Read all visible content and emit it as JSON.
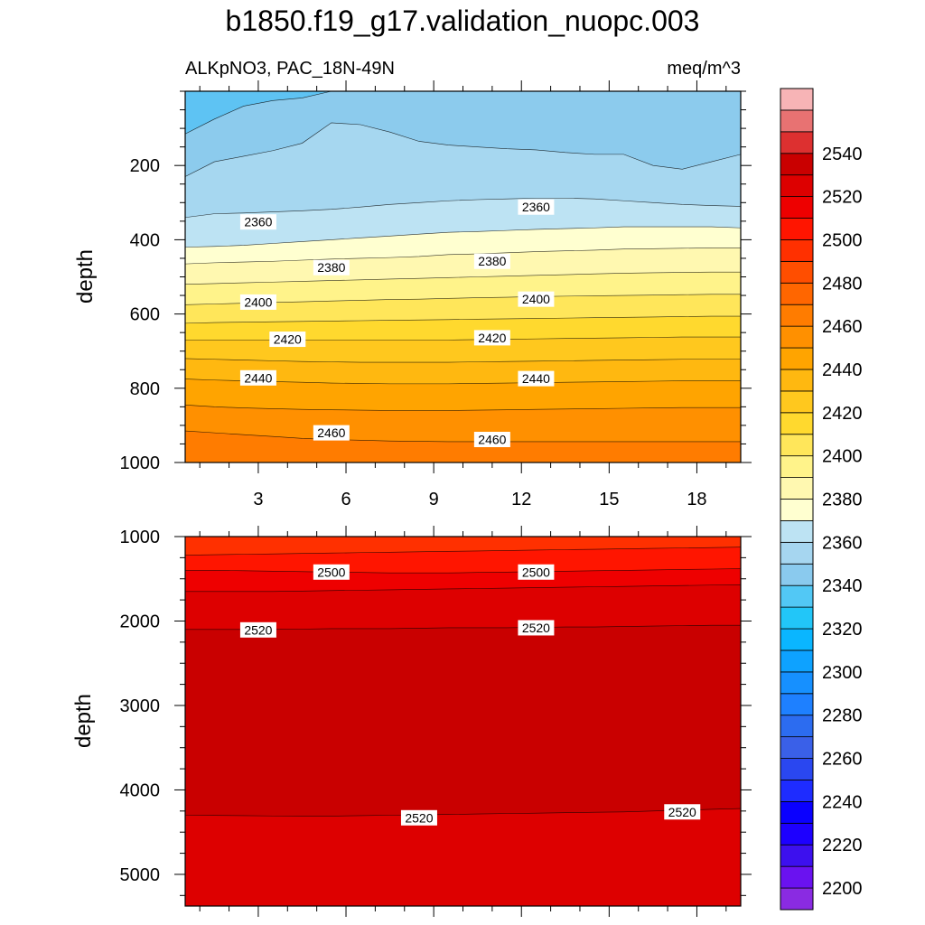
{
  "chart_data": {
    "type": "heatmap",
    "title": "b1850.f19_g17.validation_nuopc.003",
    "subtitle_left": "ALKpNO3, PAC_18N-49N",
    "subtitle_right": "meq/m^3",
    "xticks": [
      "3",
      "6",
      "9",
      "12",
      "15",
      "18"
    ],
    "x_range": [
      0.5,
      19.5
    ],
    "colorbar": {
      "levels": [
        2190,
        2200,
        2210,
        2220,
        2230,
        2240,
        2250,
        2260,
        2270,
        2280,
        2290,
        2300,
        2310,
        2320,
        2330,
        2340,
        2350,
        2360,
        2370,
        2380,
        2390,
        2400,
        2410,
        2420,
        2430,
        2440,
        2450,
        2460,
        2470,
        2480,
        2490,
        2500,
        2510,
        2520,
        2530,
        2540,
        2550,
        2560
      ],
      "colors": [
        "#8a2be2",
        "#6a12f0",
        "#3d10ee",
        "#1d00ff",
        "#0a00ff",
        "#1e2cff",
        "#2a47f0",
        "#3a60e8",
        "#2c6cf0",
        "#1e80ff",
        "#1690ff",
        "#0ea2ff",
        "#0ab6ff",
        "#22c6f8",
        "#52c8f5",
        "#8acaee",
        "#a6d6f0",
        "#bde3f3",
        "#ffffd0",
        "#fff8b0",
        "#fff38a",
        "#ffe65a",
        "#ffd92e",
        "#ffc81e",
        "#ffb810",
        "#ffa400",
        "#ff9000",
        "#ff7c00",
        "#ff6600",
        "#ff4e00",
        "#ff3000",
        "#ff1500",
        "#ee0000",
        "#dd0000",
        "#c90000",
        "#dd3030",
        "#e87272",
        "#f7b4b6"
      ],
      "tick_labels": [
        "2200",
        "2220",
        "2240",
        "2260",
        "2280",
        "2300",
        "2320",
        "2340",
        "2360",
        "2380",
        "2400",
        "2420",
        "2440",
        "2460",
        "2480",
        "2500",
        "2520",
        "2540"
      ]
    },
    "panels": [
      {
        "name": "upper",
        "ylabel": "depth",
        "y_range": [
          0,
          1000
        ],
        "yticks": [
          "200",
          "400",
          "600",
          "800",
          "1000"
        ],
        "bands": [
          {
            "color": "#5ec3f3",
            "top": [
              0,
              0,
              0,
              0,
              0,
              0,
              0,
              0,
              0,
              0,
              0,
              0,
              0,
              0,
              0,
              0,
              0,
              0,
              0,
              0
            ]
          },
          {
            "color": "#8ccbed",
            "top": [
              115,
              75,
              40,
              25,
              18,
              0,
              0,
              0,
              0,
              0,
              0,
              0,
              0,
              0,
              0,
              0,
              0,
              0,
              0,
              0
            ]
          },
          {
            "color": "#a6d7f0",
            "top": [
              230,
              190,
              175,
              160,
              140,
              85,
              90,
              110,
              135,
              145,
              150,
              155,
              158,
              165,
              170,
              170,
              200,
              210,
              190,
              170
            ]
          },
          {
            "color": "#bde3f3",
            "top": [
              340,
              330,
              328,
              325,
              322,
              318,
              312,
              305,
              300,
              295,
              292,
              290,
              288,
              288,
              290,
              295,
              300,
              305,
              308,
              310
            ]
          },
          {
            "color": "#ffffd0",
            "top": [
              420,
              418,
              415,
              410,
              405,
              400,
              395,
              390,
              385,
              380,
              378,
              375,
              372,
              370,
              368,
              365,
              365,
              365,
              365,
              368
            ]
          },
          {
            "color": "#fff8b0",
            "top": [
              465,
              462,
              460,
              458,
              455,
              452,
              450,
              448,
              445,
              440,
              438,
              435,
              432,
              430,
              428,
              425,
              424,
              423,
              422,
              422
            ]
          },
          {
            "color": "#fff38a",
            "top": [
              520,
              518,
              516,
              514,
              512,
              510,
              508,
              506,
              504,
              502,
              500,
              498,
              496,
              494,
              492,
              490,
              489,
              488,
              487,
              487
            ]
          },
          {
            "color": "#ffe65a",
            "top": [
              575,
              573,
              571,
              569,
              567,
              565,
              563,
              561,
              560,
              558,
              556,
              555,
              553,
              552,
              551,
              550,
              549,
              548,
              547,
              547
            ]
          },
          {
            "color": "#ffd92e",
            "top": [
              625,
              623,
              622,
              621,
              620,
              619,
              618,
              617,
              616,
              615,
              614,
              613,
              612,
              611,
              610,
              609,
              608,
              607,
              606,
              606
            ]
          },
          {
            "color": "#ffc81e",
            "top": [
              670,
              670,
              670,
              670,
              670,
              670,
              670,
              670,
              670,
              670,
              669,
              668,
              667,
              666,
              665,
              664,
              663,
              662,
              662,
              662
            ]
          },
          {
            "color": "#ffb810",
            "top": [
              720,
              722,
              724,
              726,
              728,
              729,
              730,
              730,
              730,
              730,
              729,
              728,
              727,
              726,
              725,
              724,
              723,
              722,
              722,
              722
            ]
          },
          {
            "color": "#ffa400",
            "top": [
              775,
              778,
              780,
              782,
              784,
              786,
              787,
              788,
              788,
              788,
              787,
              786,
              785,
              784,
              783,
              782,
              781,
              780,
              780,
              780
            ]
          },
          {
            "color": "#ff9000",
            "top": [
              845,
              850,
              853,
              855,
              857,
              858,
              859,
              860,
              860,
              860,
              859,
              858,
              857,
              856,
              855,
              854,
              853,
              852,
              852,
              852
            ]
          },
          {
            "color": "#ff7c00",
            "top": [
              915,
              920,
              925,
              930,
              935,
              938,
              940,
              942,
              943,
              944,
              944,
              944,
              944,
              944,
              944,
              944,
              944,
              944,
              944,
              944
            ]
          }
        ],
        "labels": [
          {
            "text": "2360",
            "x": 3.0,
            "y": 352
          },
          {
            "text": "2360",
            "x": 12.5,
            "y": 312
          },
          {
            "text": "2380",
            "x": 5.5,
            "y": 475
          },
          {
            "text": "2380",
            "x": 11.0,
            "y": 458
          },
          {
            "text": "2400",
            "x": 3.0,
            "y": 568
          },
          {
            "text": "2400",
            "x": 12.5,
            "y": 560
          },
          {
            "text": "2420",
            "x": 4.0,
            "y": 668
          },
          {
            "text": "2420",
            "x": 11.0,
            "y": 664
          },
          {
            "text": "2440",
            "x": 3.0,
            "y": 772
          },
          {
            "text": "2440",
            "x": 12.5,
            "y": 774
          },
          {
            "text": "2460",
            "x": 5.5,
            "y": 920
          },
          {
            "text": "2460",
            "x": 11.0,
            "y": 938
          }
        ]
      },
      {
        "name": "lower",
        "ylabel": "depth",
        "y_range": [
          1000,
          5375
        ],
        "yticks": [
          "1000",
          "2000",
          "3000",
          "4000",
          "5000"
        ],
        "bands": [
          {
            "color": "#ff3000",
            "top": [
              1000,
              1000,
              1000,
              1000,
              1000,
              1000,
              1000,
              1000,
              1000,
              1000,
              1000,
              1000,
              1000,
              1000,
              1000,
              1000,
              1000,
              1000,
              1000,
              1000
            ]
          },
          {
            "color": "#ff1500",
            "top": [
              1220,
              1215,
              1210,
              1205,
              1200,
              1195,
              1190,
              1185,
              1180,
              1175,
              1170,
              1165,
              1160,
              1155,
              1150,
              1145,
              1140,
              1135,
              1130,
              1125
            ]
          },
          {
            "color": "#ee0000",
            "top": [
              1400,
              1400,
              1405,
              1410,
              1415,
              1420,
              1425,
              1430,
              1430,
              1430,
              1425,
              1420,
              1415,
              1410,
              1405,
              1400,
              1395,
              1390,
              1385,
              1380
            ]
          },
          {
            "color": "#dd0000",
            "top": [
              1650,
              1650,
              1650,
              1650,
              1645,
              1640,
              1635,
              1630,
              1625,
              1620,
              1615,
              1610,
              1605,
              1600,
              1595,
              1590,
              1585,
              1580,
              1575,
              1570
            ]
          },
          {
            "color": "#c90000",
            "top": [
              2100,
              2100,
              2100,
              2100,
              2095,
              2090,
              2090,
              2090,
              2085,
              2080,
              2080,
              2080,
              2075,
              2070,
              2070,
              2065,
              2060,
              2055,
              2050,
              2050
            ]
          },
          {
            "color": "#dd0000",
            "top": [
              4300,
              4302,
              4305,
              4308,
              4310,
              4310,
              4305,
              4300,
              4295,
              4290,
              4285,
              4280,
              4275,
              4270,
              4265,
              4260,
              4250,
              4240,
              4230,
              4220
            ]
          }
        ],
        "labels": [
          {
            "text": "2500",
            "x": 5.5,
            "y": 1420
          },
          {
            "text": "2500",
            "x": 12.5,
            "y": 1420
          },
          {
            "text": "2520",
            "x": 3.0,
            "y": 2105
          },
          {
            "text": "2520",
            "x": 12.5,
            "y": 2080
          },
          {
            "text": "2520",
            "x": 8.5,
            "y": 4330
          },
          {
            "text": "2520",
            "x": 17.5,
            "y": 4260
          }
        ]
      }
    ]
  }
}
